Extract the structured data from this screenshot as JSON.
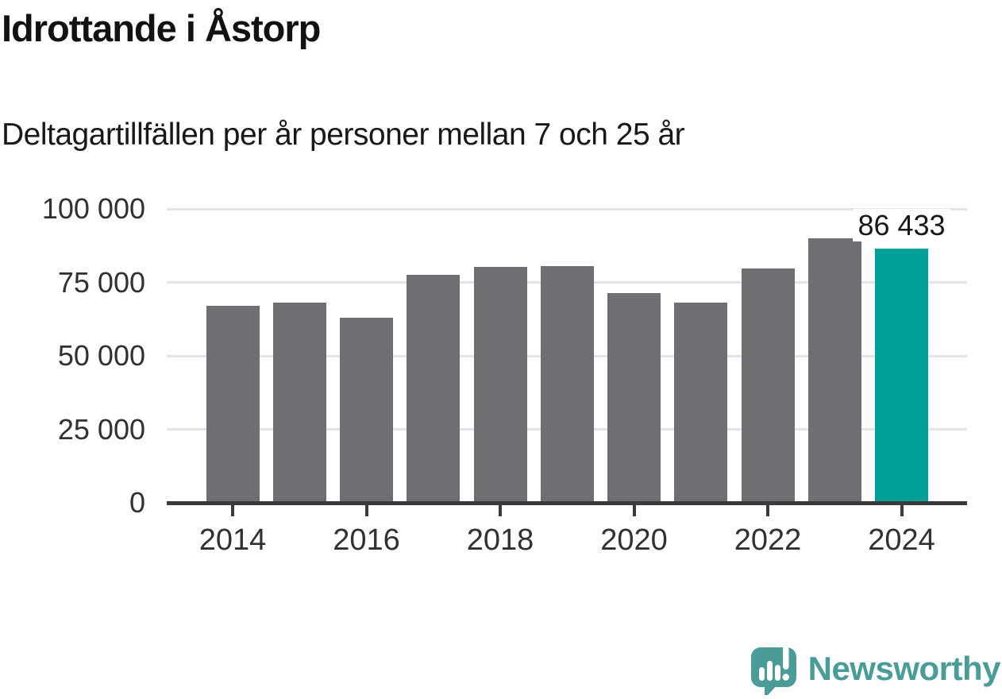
{
  "header": {
    "title": "Idrottande i Åstorp",
    "subtitle": "Deltagartillfällen per år personer mellan 7 och 25 år"
  },
  "chart_data": {
    "type": "bar",
    "title": "Idrottande i Åstorp",
    "subtitle": "Deltagartillfällen per år personer mellan 7 och 25 år",
    "categories": [
      "2014",
      "2015",
      "2016",
      "2017",
      "2018",
      "2019",
      "2020",
      "2021",
      "2022",
      "2023",
      "2024"
    ],
    "values": [
      67000,
      68200,
      63100,
      77600,
      80200,
      80500,
      71300,
      68100,
      79800,
      90100,
      86433
    ],
    "highlight_index": 10,
    "highlight_value_label": "86 433",
    "ylim": [
      0,
      100000
    ],
    "yticks": [
      0,
      25000,
      50000,
      75000,
      100000
    ],
    "ytick_labels": [
      "0",
      "25 000",
      "50 000",
      "75 000",
      "100 000"
    ],
    "xtick_years": [
      2014,
      2016,
      2018,
      2020,
      2022,
      2024
    ],
    "xtick_labels": [
      "2014",
      "2016",
      "2018",
      "2020",
      "2022",
      "2024"
    ],
    "grid": true,
    "legend": "none",
    "bar_color": "#6e6e73",
    "highlight_color": "#00a099",
    "axis_color": "#3a3b3d",
    "grid_color": "#e4e4e4"
  },
  "footer": {
    "brand": "Newsworthy",
    "brand_color": "#4a9c99",
    "logo_icon": "newsworthy-speech-bubble-chart-icon"
  }
}
